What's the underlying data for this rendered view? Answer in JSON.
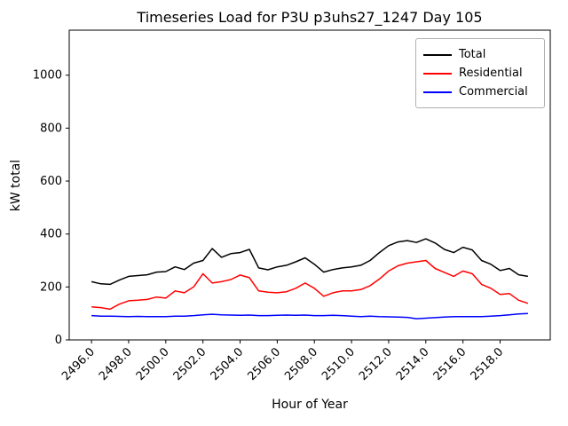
{
  "chart_data": {
    "type": "line",
    "title": "Timeseries Load for P3U p3uhs27_1247  Day 105",
    "xlabel": "Hour of Year",
    "ylabel": "kW total",
    "xlim": [
      2494.8,
      2520.7
    ],
    "ylim": [
      0,
      1170
    ],
    "grid": false,
    "legend_position": "upper right",
    "xticks": {
      "values": [
        2496,
        2498,
        2500,
        2502,
        2504,
        2506,
        2508,
        2510,
        2512,
        2514,
        2516,
        2518
      ],
      "labels": [
        "2496.0",
        "2498.0",
        "2500.0",
        "2502.0",
        "2504.0",
        "2506.0",
        "2508.0",
        "2510.0",
        "2512.0",
        "2514.0",
        "2516.0",
        "2518.0"
      ]
    },
    "yticks": {
      "values": [
        0,
        200,
        400,
        600,
        800,
        1000
      ],
      "labels": [
        "0",
        "200",
        "400",
        "600",
        "800",
        "1000"
      ]
    },
    "x": [
      2496.0,
      2496.5,
      2497.0,
      2497.5,
      2498.0,
      2498.5,
      2499.0,
      2499.5,
      2500.0,
      2500.5,
      2501.0,
      2501.5,
      2502.0,
      2502.5,
      2503.0,
      2503.5,
      2504.0,
      2504.5,
      2505.0,
      2505.5,
      2506.0,
      2506.5,
      2507.0,
      2507.5,
      2508.0,
      2508.5,
      2509.0,
      2509.5,
      2510.0,
      2510.5,
      2511.0,
      2511.5,
      2512.0,
      2512.5,
      2513.0,
      2513.5,
      2514.0,
      2514.5,
      2515.0,
      2515.5,
      2516.0,
      2516.5,
      2517.0,
      2517.5,
      2518.0,
      2518.5,
      2519.0,
      2519.5
    ],
    "series": [
      {
        "name": "Total",
        "color": "#000000",
        "values": [
          220,
          212,
          210,
          226,
          240,
          243,
          246,
          256,
          258,
          276,
          266,
          290,
          300,
          345,
          312,
          326,
          330,
          342,
          272,
          265,
          276,
          282,
          295,
          310,
          286,
          256,
          266,
          272,
          276,
          282,
          300,
          330,
          356,
          370,
          375,
          368,
          382,
          366,
          342,
          330,
          350,
          340,
          300,
          286,
          262,
          270,
          246,
          240
        ]
      },
      {
        "name": "Residential",
        "color": "#ff0000",
        "values": [
          125,
          122,
          116,
          135,
          148,
          150,
          153,
          162,
          158,
          185,
          178,
          200,
          250,
          215,
          220,
          228,
          245,
          235,
          185,
          180,
          178,
          182,
          195,
          215,
          195,
          165,
          178,
          185,
          185,
          190,
          205,
          230,
          260,
          280,
          290,
          295,
          300,
          270,
          255,
          240,
          260,
          250,
          210,
          195,
          172,
          175,
          150,
          138
        ]
      },
      {
        "name": "Commercial",
        "color": "#0000ff",
        "values": [
          92,
          90,
          90,
          89,
          88,
          89,
          88,
          88,
          88,
          90,
          90,
          92,
          95,
          97,
          95,
          94,
          93,
          94,
          92,
          92,
          93,
          94,
          93,
          94,
          92,
          92,
          93,
          92,
          90,
          88,
          90,
          88,
          87,
          86,
          85,
          80,
          82,
          84,
          86,
          88,
          88,
          88,
          88,
          90,
          92,
          95,
          98,
          100
        ]
      }
    ]
  }
}
